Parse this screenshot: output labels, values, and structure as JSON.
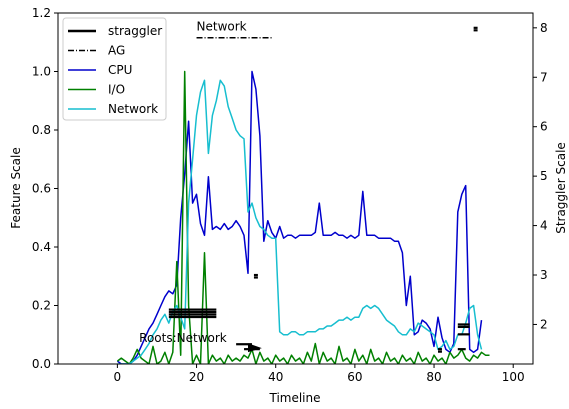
{
  "chart_data": {
    "type": "line",
    "xlabel": "Timeline",
    "ylabel": "Feature Scale",
    "y2label": "Straggler Scale",
    "xlim": [
      -15,
      105
    ],
    "ylim": [
      0,
      1.2
    ],
    "y2lim": [
      1.2,
      8.3
    ],
    "xticks": [
      "0",
      "20",
      "40",
      "60",
      "80",
      "100"
    ],
    "yticks": [
      "0.0",
      "0.2",
      "0.4",
      "0.6",
      "0.8",
      "1.0",
      "1.2"
    ],
    "y2ticks": [
      "2",
      "3",
      "4",
      "5",
      "6",
      "7",
      "8"
    ],
    "legend": {
      "placement": "top-left",
      "entries": [
        {
          "label": "straggler",
          "color": "#000000",
          "style": "solid-thick"
        },
        {
          "label": "AG",
          "color": "#000000",
          "style": "dashdot"
        },
        {
          "label": "CPU",
          "color": "#0000cc",
          "style": "solid"
        },
        {
          "label": "I/O",
          "color": "#008000",
          "style": "solid"
        },
        {
          "label": "Network",
          "color": "#17becf",
          "style": "solid"
        }
      ]
    },
    "annotations": [
      {
        "text": "Network",
        "x": 20,
        "y2": 7.95
      },
      {
        "text": "Roots:Network",
        "x": 5.5,
        "y2": 1.65
      }
    ],
    "ag_segment": {
      "x": [
        20,
        39
      ],
      "y2": 7.8
    },
    "series": [
      {
        "name": "CPU",
        "color": "#0000cc",
        "x": [
          0,
          1,
          2,
          3,
          4,
          5,
          6,
          7,
          8,
          9,
          10,
          11,
          12,
          13,
          14,
          15,
          16,
          17,
          18,
          19,
          20,
          21,
          22,
          23,
          24,
          25,
          26,
          27,
          28,
          29,
          30,
          31,
          32,
          33,
          34,
          35,
          36,
          37,
          38,
          39,
          40,
          41,
          42,
          43,
          44,
          45,
          46,
          47,
          48,
          49,
          50,
          51,
          52,
          53,
          54,
          55,
          56,
          57,
          58,
          59,
          60,
          61,
          62,
          63,
          64,
          65,
          66,
          67,
          68,
          69,
          70,
          71,
          72,
          73,
          74,
          75,
          76,
          77,
          78,
          79,
          80,
          81,
          82,
          83,
          84,
          85,
          86,
          87,
          88,
          89,
          90,
          91,
          92
        ],
        "y": [
          0.01,
          0,
          0,
          0,
          0.01,
          0.03,
          0.06,
          0.09,
          0.12,
          0.14,
          0.17,
          0.2,
          0.23,
          0.25,
          0.24,
          0.27,
          0.5,
          0.65,
          0.83,
          0.55,
          0.58,
          0.48,
          0.44,
          0.64,
          0.46,
          0.47,
          0.46,
          0.48,
          0.46,
          0.47,
          0.49,
          0.47,
          0.44,
          0.31,
          1.0,
          0.94,
          0.78,
          0.42,
          0.49,
          0.45,
          0.43,
          0.47,
          0.43,
          0.44,
          0.44,
          0.43,
          0.44,
          0.44,
          0.44,
          0.44,
          0.45,
          0.55,
          0.44,
          0.44,
          0.44,
          0.45,
          0.44,
          0.44,
          0.43,
          0.44,
          0.43,
          0.44,
          0.59,
          0.44,
          0.44,
          0.44,
          0.43,
          0.43,
          0.43,
          0.43,
          0.42,
          0.42,
          0.38,
          0.2,
          0.3,
          0.1,
          0.11,
          0.15,
          0.14,
          0.12,
          0.06,
          0.16,
          0.09,
          0.05,
          0.04,
          0.07,
          0.52,
          0.58,
          0.61,
          0.05,
          0.04,
          0.05,
          0.15
        ]
      },
      {
        "name": "I/O",
        "color": "#008000",
        "x": [
          0,
          1,
          2,
          3,
          4,
          5,
          6,
          7,
          8,
          9,
          10,
          11,
          12,
          13,
          14,
          15,
          16,
          17,
          18,
          19,
          20,
          21,
          22,
          23,
          24,
          25,
          26,
          27,
          28,
          29,
          30,
          31,
          32,
          33,
          34,
          35,
          36,
          37,
          38,
          39,
          40,
          41,
          42,
          43,
          44,
          45,
          46,
          47,
          48,
          49,
          50,
          51,
          52,
          53,
          54,
          55,
          56,
          57,
          58,
          59,
          60,
          61,
          62,
          63,
          64,
          65,
          66,
          67,
          68,
          69,
          70,
          71,
          72,
          73,
          74,
          75,
          76,
          77,
          78,
          79,
          80,
          81,
          82,
          83,
          84,
          85,
          86,
          87,
          88,
          89,
          90,
          91,
          92,
          93,
          94
        ],
        "y": [
          0.01,
          0.02,
          0.01,
          0,
          0.02,
          0.05,
          0.02,
          0.01,
          0,
          0.06,
          0,
          0.01,
          0.04,
          0,
          0.04,
          0.35,
          0.03,
          1.0,
          0.2,
          0,
          0.03,
          0,
          0.38,
          0,
          0.03,
          0.01,
          0.02,
          0,
          0.03,
          0.01,
          0.02,
          0.01,
          0.03,
          0.02,
          0.05,
          0,
          0.04,
          0.01,
          0.02,
          0,
          0.03,
          0.01,
          0.02,
          0,
          0.03,
          0.01,
          0.02,
          0,
          0.04,
          0.01,
          0.07,
          0,
          0.04,
          0.01,
          0.02,
          0,
          0.06,
          0.01,
          0.02,
          0,
          0.05,
          0.01,
          0.03,
          0,
          0.05,
          0.01,
          0.02,
          0,
          0.04,
          0.01,
          0.02,
          0,
          0.03,
          0.01,
          0.02,
          0,
          0.04,
          0.01,
          0.02,
          0,
          0.03,
          0.01,
          0.02,
          0,
          0.04,
          0.02,
          0.03,
          0.05,
          0.02,
          0.01,
          0.03,
          0.02,
          0.04,
          0.03,
          0.03
        ]
      },
      {
        "name": "Network",
        "color": "#17becf",
        "x": [
          0,
          1,
          2,
          3,
          4,
          5,
          6,
          7,
          8,
          9,
          10,
          11,
          12,
          13,
          14,
          15,
          16,
          17,
          18,
          19,
          20,
          21,
          22,
          23,
          24,
          25,
          26,
          27,
          28,
          29,
          30,
          31,
          32,
          33,
          34,
          35,
          36,
          37,
          38,
          39,
          40,
          41,
          42,
          43,
          44,
          45,
          46,
          47,
          48,
          49,
          50,
          51,
          52,
          53,
          54,
          55,
          56,
          57,
          58,
          59,
          60,
          61,
          62,
          63,
          64,
          65,
          66,
          67,
          68,
          69,
          70,
          71,
          72,
          73,
          74,
          75,
          76,
          77,
          78,
          79,
          80,
          81,
          82,
          83,
          84,
          85,
          86,
          87,
          88,
          89,
          90,
          91,
          92
        ],
        "y": [
          0,
          0,
          0,
          0,
          0.01,
          0.02,
          0.03,
          0.05,
          0.07,
          0.1,
          0.12,
          0.15,
          0.17,
          0.14,
          0.18,
          0.2,
          0.16,
          0.12,
          0.55,
          0.7,
          0.85,
          0.93,
          0.97,
          0.72,
          0.85,
          0.9,
          0.97,
          0.95,
          0.88,
          0.84,
          0.8,
          0.78,
          0.77,
          0.52,
          0.55,
          0.5,
          0.47,
          0.46,
          0.44,
          0.43,
          0.43,
          0.11,
          0.1,
          0.1,
          0.11,
          0.11,
          0.1,
          0.1,
          0.11,
          0.11,
          0.11,
          0.12,
          0.12,
          0.13,
          0.13,
          0.14,
          0.15,
          0.15,
          0.16,
          0.15,
          0.16,
          0.16,
          0.19,
          0.2,
          0.19,
          0.2,
          0.19,
          0.17,
          0.15,
          0.14,
          0.13,
          0.11,
          0.1,
          0.1,
          0.12,
          0.11,
          0.14,
          0.13,
          0.12,
          0.11,
          0.1,
          0.05,
          0.06,
          0.08,
          0.05,
          0.06,
          0.1,
          0.1,
          0.14,
          0.19,
          0.2,
          0.1,
          0.05
        ]
      }
    ],
    "straggler_segments": [
      {
        "x": [
          13,
          25
        ],
        "y2": 2.3
      },
      {
        "x": [
          13,
          25
        ],
        "y2": 2.25
      },
      {
        "x": [
          13,
          25
        ],
        "y2": 2.2
      },
      {
        "x": [
          13,
          25
        ],
        "y2": 2.15
      },
      {
        "x": [
          34.5,
          35.5
        ],
        "y2": 3.0
      },
      {
        "x": [
          34.5,
          35.5
        ],
        "y2": 2.95
      },
      {
        "x": [
          90,
          91
        ],
        "y2": 8.0
      },
      {
        "x": [
          90,
          91
        ],
        "y2": 7.95
      },
      {
        "x": [
          86,
          89
        ],
        "y2": 2.0
      },
      {
        "x": [
          86,
          89
        ],
        "y2": 1.95
      },
      {
        "x": [
          86,
          89
        ],
        "y2": 1.8
      },
      {
        "x": [
          86,
          88
        ],
        "y2": 1.5
      },
      {
        "x": [
          81,
          82
        ],
        "y2": 1.5
      },
      {
        "x": [
          81,
          82
        ],
        "y2": 1.45
      },
      {
        "x": [
          30,
          34
        ],
        "y2": 1.6
      },
      {
        "x": [
          32,
          36
        ],
        "y2": 1.5
      }
    ]
  }
}
